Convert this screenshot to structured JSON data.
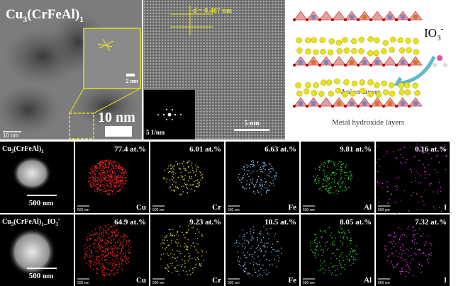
{
  "tem": {
    "sample": [
      "Cu",
      "3",
      "(CrFeAl)",
      "1"
    ],
    "inset_scale": "2 nm",
    "big_label": "10 nm",
    "scale": "10 nm"
  },
  "hrtem": {
    "d_spacing": "d = 0.487 nm",
    "fft_scale": "5 1/nm",
    "scale": "5 nm"
  },
  "schematic": {
    "ion": [
      "IO",
      "3",
      "-"
    ],
    "anion_layers": "Anion layers",
    "metal_layers": "Metal hydroxide layers"
  },
  "eds_rows": [
    {
      "sample": [
        "Cu",
        "3",
        "(CrFeAl)",
        "1"
      ],
      "scale": "500 nm",
      "maps": [
        {
          "element": "Cu",
          "content": "77.4 at.%",
          "scale": "500 nm"
        },
        {
          "element": "Cr",
          "content": "6.01 at.%",
          "scale": "500 nm"
        },
        {
          "element": "Fe",
          "content": "6.63 at.%",
          "scale": "500 nm"
        },
        {
          "element": "Al",
          "content": "9.81 at.%",
          "scale": "500 nm"
        },
        {
          "element": "I",
          "content": "0.16 at.%",
          "scale": "500 nm"
        }
      ]
    },
    {
      "sample": [
        "Cu",
        "3",
        "(CrFeAl)",
        "1",
        "_IO",
        "3",
        "-"
      ],
      "scale": "500 nm",
      "maps": [
        {
          "element": "Cu",
          "content": "64.9 at.%",
          "scale": "500 nm"
        },
        {
          "element": "Cr",
          "content": "9.23 at.%",
          "scale": "500 nm"
        },
        {
          "element": "Fe",
          "content": "10.5 at.%",
          "scale": "500 nm"
        },
        {
          "element": "Al",
          "content": "8.05 at.%",
          "scale": "500 nm"
        },
        {
          "element": "I",
          "content": "7.32 at.%",
          "scale": "500 nm"
        }
      ]
    }
  ]
}
